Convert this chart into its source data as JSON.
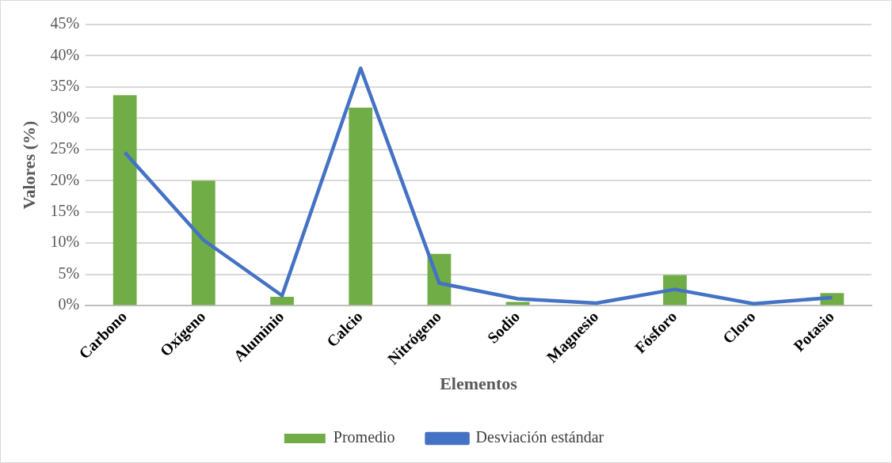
{
  "chart_data": {
    "type": "bar",
    "xlabel": "Elementos",
    "ylabel": "Valores (%)",
    "categories": [
      "Carbono",
      "Oxígeno",
      "Aluminio",
      "Calcio",
      "Nitrógeno",
      "Sodio",
      "Magnesio",
      "Fósforo",
      "Cloro",
      "Potasio"
    ],
    "series": [
      {
        "name": "Promedio",
        "color": "#70ad47",
        "values": [
          33.7,
          20.0,
          1.4,
          31.7,
          8.3,
          0.6,
          null,
          4.9,
          null,
          2.0
        ]
      },
      {
        "name": "Desviación estándar",
        "type": "line",
        "color": "#4472c4",
        "values": [
          24.5,
          10.5,
          1.6,
          38.0,
          3.6,
          1.1,
          0.4,
          2.6,
          0.3,
          1.3
        ]
      }
    ],
    "ylim": [
      0,
      45
    ],
    "yticks": [
      {
        "value": 0,
        "label": "0%"
      },
      {
        "value": 5,
        "label": "5%"
      },
      {
        "value": 10,
        "label": "10%"
      },
      {
        "value": 15,
        "label": "15%"
      },
      {
        "value": 20,
        "label": "20%"
      },
      {
        "value": 25,
        "label": "25%"
      },
      {
        "value": 30,
        "label": "30%"
      },
      {
        "value": 35,
        "label": "35%"
      },
      {
        "value": 40,
        "label": "40%"
      },
      {
        "value": 45,
        "label": "45%"
      }
    ],
    "grid": "y",
    "legend": "bottom",
    "marker": "none"
  }
}
